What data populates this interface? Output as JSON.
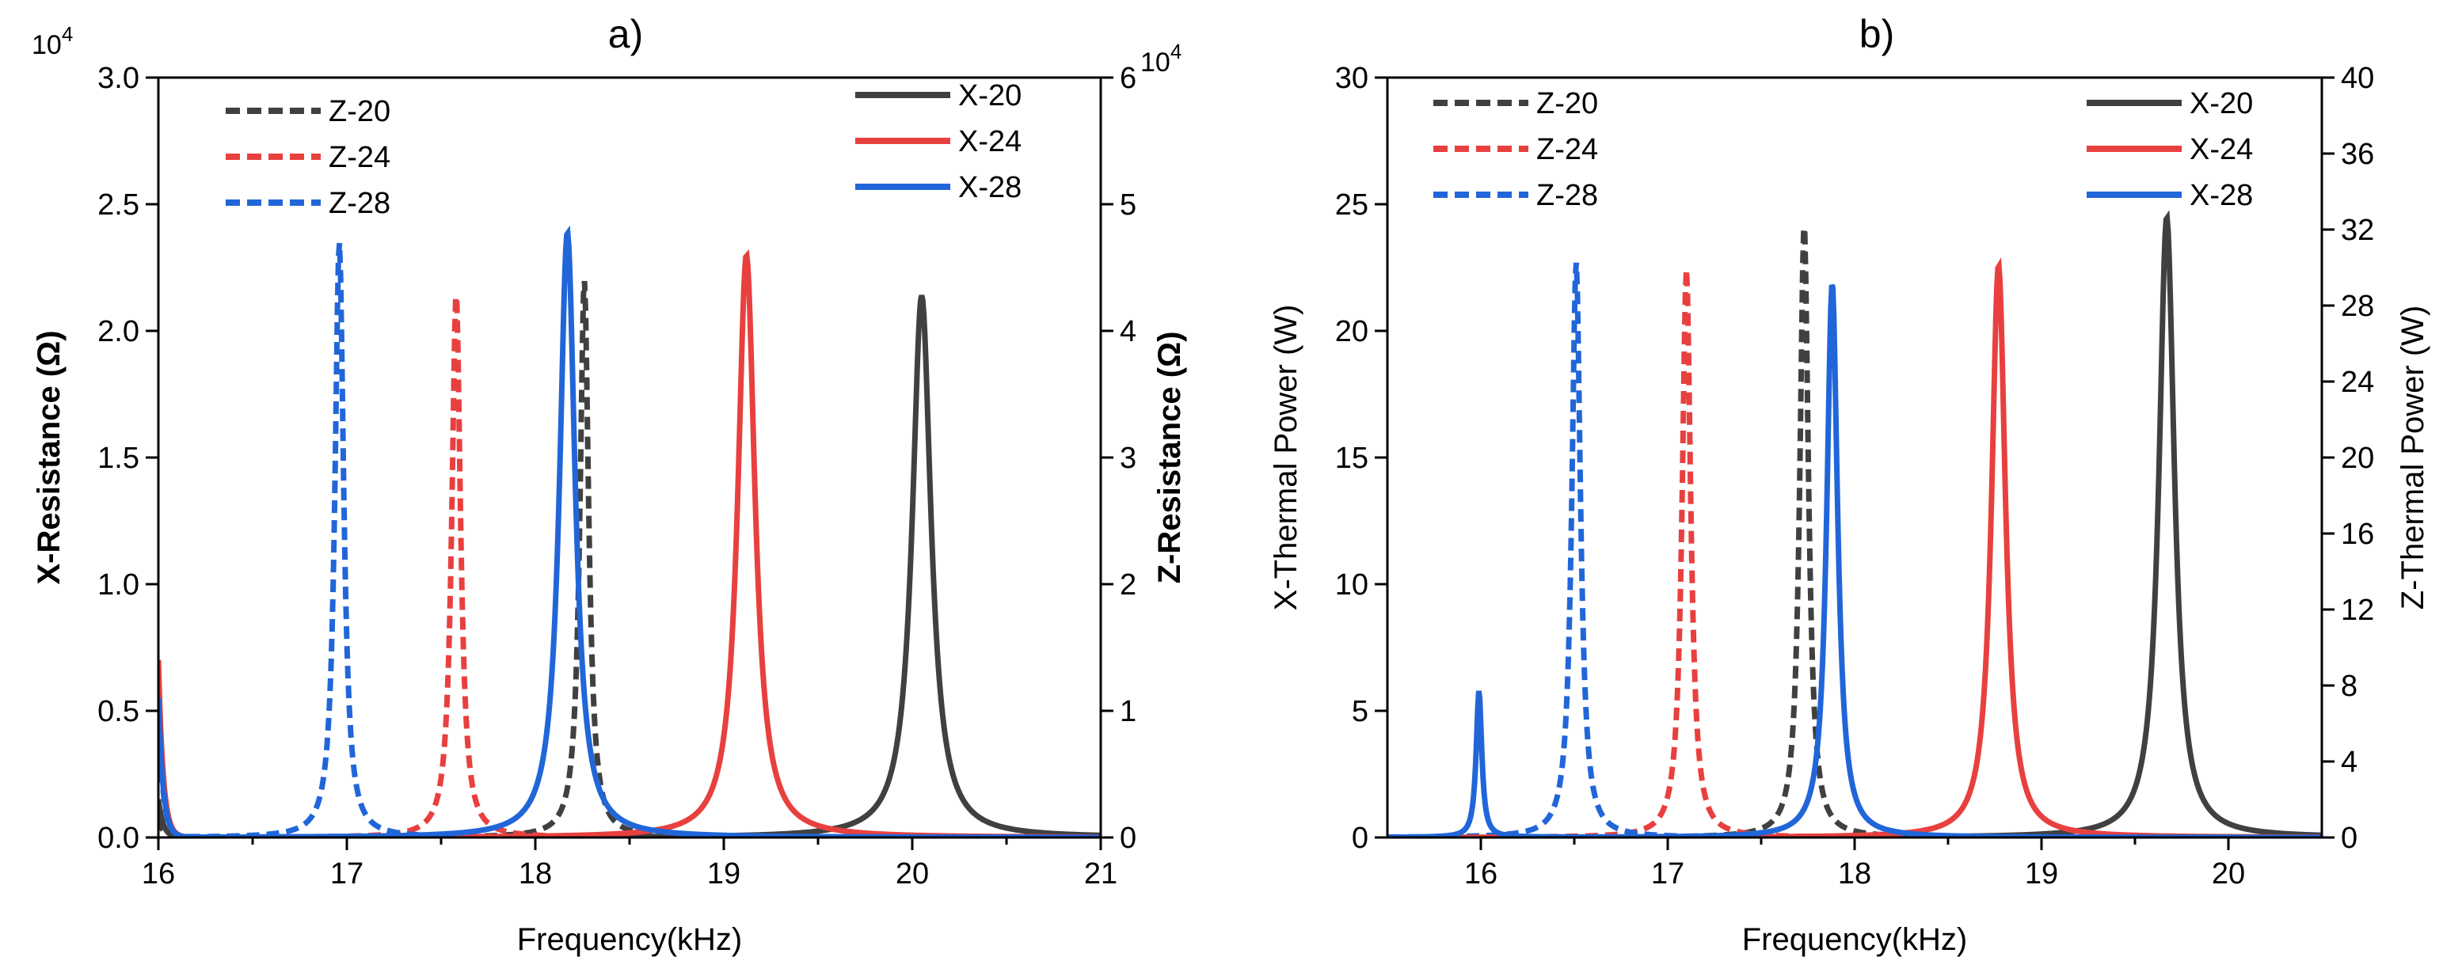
{
  "chart_data": [
    {
      "type": "line",
      "panel_label": "a)",
      "xlabel": "Frequency(kHz)",
      "ylabel_left": "X-Resistance (Ω)",
      "ylabel_right": "Z-Resistance (Ω)",
      "left_multiplier": "10",
      "left_multiplier_exp": "4",
      "right_multiplier": "10",
      "right_multiplier_exp": "4",
      "xlim": [
        16,
        21
      ],
      "ylim_left": [
        0,
        3.0
      ],
      "ylim_right": [
        0,
        6
      ],
      "x_ticks": [
        "16",
        "17",
        "18",
        "19",
        "20",
        "21"
      ],
      "y_left_ticks": [
        "0.0",
        "0.5",
        "1.0",
        "1.5",
        "2.0",
        "2.5",
        "3.0"
      ],
      "y_right_ticks": [
        "0",
        "1",
        "2",
        "3",
        "4",
        "5",
        "6"
      ],
      "series": [
        {
          "name": "Z-20",
          "axis": "right",
          "style": "dashed",
          "color": "#404040",
          "peak_x": 18.26,
          "peak_y": 4.4,
          "width": 0.028,
          "start_y": 0.15
        },
        {
          "name": "Z-24",
          "axis": "right",
          "style": "dashed",
          "color": "#e8403f",
          "peak_x": 17.58,
          "peak_y": 4.3,
          "width": 0.028,
          "start_y": 1.3
        },
        {
          "name": "Z-28",
          "axis": "right",
          "style": "dashed",
          "color": "#2166d9",
          "peak_x": 16.96,
          "peak_y": 4.7,
          "width": 0.028,
          "start_y": 1.0
        },
        {
          "name": "X-20",
          "axis": "left",
          "style": "solid",
          "color": "#404040",
          "peak_x": 20.05,
          "peak_y": 2.14,
          "width": 0.06,
          "start_y": 0.15
        },
        {
          "name": "X-24",
          "axis": "left",
          "style": "solid",
          "color": "#e8403f",
          "peak_x": 19.12,
          "peak_y": 2.3,
          "width": 0.055,
          "start_y": 0.7
        },
        {
          "name": "X-28",
          "axis": "left",
          "style": "solid",
          "color": "#2166d9",
          "peak_x": 18.17,
          "peak_y": 2.39,
          "width": 0.05,
          "start_y": 0.55
        }
      ]
    },
    {
      "type": "line",
      "panel_label": "b)",
      "xlabel": "Frequency(kHz)",
      "ylabel_left": "X-Thermal Power (W)",
      "ylabel_right": "Z-Thermal Power (W)",
      "xlim": [
        15.5,
        20.5
      ],
      "ylim_left": [
        0,
        30
      ],
      "ylim_right": [
        0,
        40
      ],
      "x_ticks": [
        "16",
        "17",
        "18",
        "19",
        "20"
      ],
      "x_tick_values": [
        16,
        17,
        18,
        19,
        20
      ],
      "y_left_ticks": [
        "0",
        "5",
        "10",
        "15",
        "20",
        "25",
        "30"
      ],
      "y_right_ticks": [
        "0",
        "4",
        "8",
        "12",
        "16",
        "20",
        "24",
        "28",
        "32",
        "36",
        "40"
      ],
      "series": [
        {
          "name": "Z-20",
          "axis": "right",
          "style": "dashed",
          "color": "#404040",
          "peak_x": 17.73,
          "peak_y": 32.3,
          "width": 0.028
        },
        {
          "name": "Z-24",
          "axis": "right",
          "style": "dashed",
          "color": "#e8403f",
          "peak_x": 17.1,
          "peak_y": 29.9,
          "width": 0.028
        },
        {
          "name": "Z-28",
          "axis": "right",
          "style": "dashed",
          "color": "#2166d9",
          "peak_x": 16.51,
          "peak_y": 30.3,
          "width": 0.028
        },
        {
          "name": "X-20",
          "axis": "left",
          "style": "solid",
          "color": "#404040",
          "peak_x": 19.67,
          "peak_y": 24.5,
          "width": 0.05
        },
        {
          "name": "X-24",
          "axis": "left",
          "style": "solid",
          "color": "#e8403f",
          "peak_x": 18.77,
          "peak_y": 22.6,
          "width": 0.045
        },
        {
          "name": "X-28",
          "axis": "left",
          "style": "solid",
          "color": "#2166d9",
          "peak_x": 17.88,
          "peak_y": 21.9,
          "width": 0.035,
          "secondary_peak_x": 15.99,
          "secondary_peak_y": 5.8
        }
      ]
    }
  ]
}
